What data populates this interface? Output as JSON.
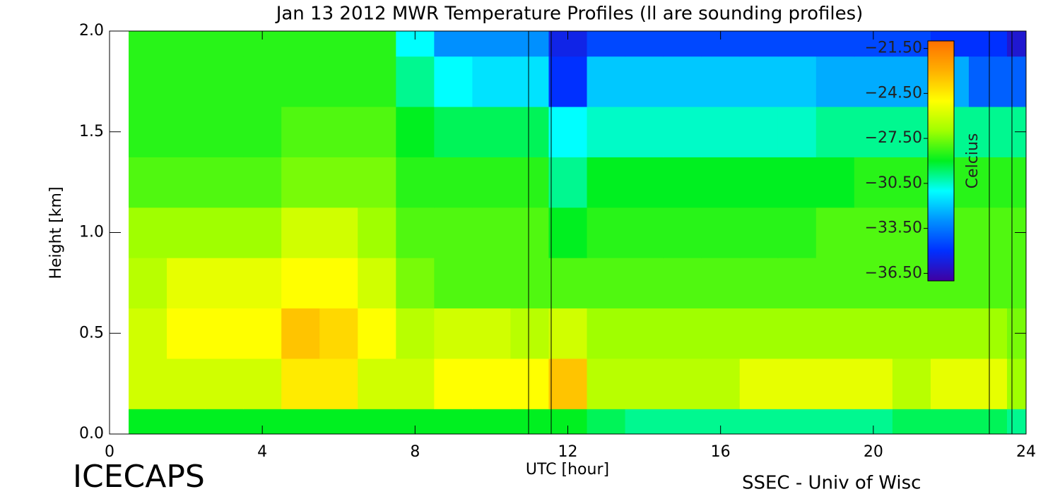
{
  "chart_data": {
    "type": "heatmap",
    "title": "Jan 13 2012 MWR Temperature Profiles (ll are sounding profiles)",
    "x_label": "UTC [hour]",
    "y_label": "Height [km]",
    "left_note": "ICECAPS",
    "right_note": "SSEC - Univ of Wisc",
    "colorbar_label": "Celcius",
    "x": [
      1,
      2,
      3,
      4,
      5,
      6,
      7,
      8,
      9,
      10,
      11,
      12,
      13,
      14,
      15,
      16,
      17,
      18,
      19,
      20,
      21,
      22,
      23,
      24
    ],
    "y": [
      0,
      0.25,
      0.5,
      0.75,
      1.0,
      1.25,
      1.5,
      1.75,
      2.0
    ],
    "z": [
      [
        -29,
        -29,
        -29,
        -29,
        -29,
        -29,
        -29,
        -29,
        -29,
        -29,
        -29,
        -29,
        -29.5,
        -30,
        -30,
        -30,
        -30,
        -30,
        -30,
        -30,
        -29.5,
        -29.5,
        -29.5,
        -30
      ],
      [
        -26,
        -26,
        -26,
        -26,
        -24.5,
        -24.5,
        -26,
        -26,
        -25,
        -25,
        -25,
        -23.5,
        -26.5,
        -26.5,
        -26.5,
        -26.5,
        -25.5,
        -25.5,
        -25.5,
        -25.5,
        -26.5,
        -25.5,
        -25.5,
        -27
      ],
      [
        -26,
        -25,
        -25,
        -25,
        -23.5,
        -24,
        -25,
        -26.5,
        -26,
        -26,
        -26.5,
        -26,
        -27,
        -27,
        -27,
        -27,
        -27,
        -27,
        -27,
        -27,
        -27,
        -27,
        -27,
        -27.5
      ],
      [
        -26.5,
        -25.5,
        -25.5,
        -25.5,
        -25,
        -25,
        -26,
        -27.5,
        -28,
        -28,
        -28,
        -28,
        -28,
        -28,
        -28,
        -28,
        -28,
        -28,
        -28,
        -28,
        -28,
        -28,
        -28,
        -28
      ],
      [
        -27,
        -27,
        -27,
        -27,
        -26,
        -26,
        -27,
        -28,
        -28,
        -28,
        -28,
        -29,
        -28.5,
        -28.5,
        -28.5,
        -28.5,
        -28.5,
        -28.5,
        -28,
        -28,
        -28,
        -28,
        -28,
        -28
      ],
      [
        -28,
        -28,
        -28,
        -28,
        -27.5,
        -27.5,
        -27.5,
        -28.5,
        -28.5,
        -28.5,
        -28.5,
        -30,
        -29,
        -29,
        -29,
        -29,
        -29,
        -29,
        -29,
        -28.5,
        -28.5,
        -28.5,
        -28.5,
        -28.5
      ],
      [
        -28.5,
        -28.5,
        -28.5,
        -28.5,
        -28,
        -28,
        -28,
        -29,
        -29.5,
        -29.5,
        -29.5,
        -31,
        -30.5,
        -30.5,
        -30.5,
        -30.5,
        -30.5,
        -30.5,
        -30,
        -30,
        -30,
        -30,
        -30,
        -30
      ],
      [
        -28.5,
        -28.5,
        -28.5,
        -28.5,
        -28.5,
        -28.5,
        -28.5,
        -30,
        -31,
        -31.5,
        -31.5,
        -35,
        -32,
        -32,
        -32,
        -32,
        -32,
        -32,
        -32.5,
        -32.5,
        -32.5,
        -32.5,
        -34,
        -34
      ],
      [
        -28.5,
        -28.5,
        -28.5,
        -28.5,
        -28.5,
        -28.5,
        -28.5,
        -31,
        -33,
        -33,
        -33,
        -35.5,
        -34.5,
        -34.5,
        -34.5,
        -34.5,
        -34.5,
        -34.5,
        -34.5,
        -34.5,
        -34.5,
        -35,
        -35,
        -36
      ]
    ],
    "xlim": [
      0,
      24
    ],
    "xticks": [
      0,
      4,
      8,
      12,
      16,
      20,
      24
    ],
    "ylim": [
      0,
      2
    ],
    "yticks": [
      {
        "value": 0,
        "label": "0.0"
      },
      {
        "value": 0.5,
        "label": "0.5"
      },
      {
        "value": 1,
        "label": "1.0"
      },
      {
        "value": 1.5,
        "label": "1.5"
      },
      {
        "value": 2,
        "label": "2.0"
      }
    ],
    "clim": [
      -37,
      -21
    ],
    "colormap": [
      "#4000a0",
      "#0030ff",
      "#0090ff",
      "#00ffff",
      "#00f020",
      "#a0ff00",
      "#ffff00",
      "#ffb000",
      "#ff7000"
    ],
    "cticks": [
      {
        "value": -21.5,
        "label": "−21.50"
      },
      {
        "value": -24.5,
        "label": "−24.50"
      },
      {
        "value": -27.5,
        "label": "−27.50"
      },
      {
        "value": -30.5,
        "label": "−30.50"
      },
      {
        "value": -33.5,
        "label": "−33.50"
      },
      {
        "value": -36.5,
        "label": "−36.50"
      }
    ]
  }
}
